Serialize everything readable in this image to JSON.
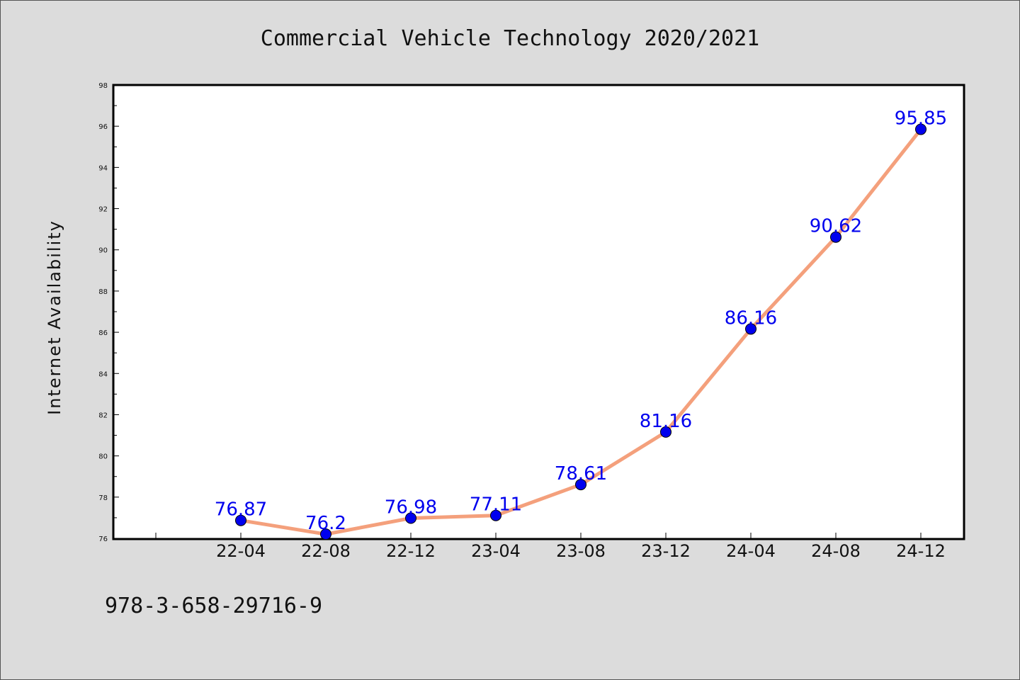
{
  "chart_data": {
    "type": "line",
    "title": "Commercial Vehicle Technology 2020/2021",
    "xlabel": "",
    "ylabel": "Internet Availability",
    "categories": [
      "22-04",
      "22-08",
      "22-12",
      "23-04",
      "23-08",
      "23-12",
      "24-04",
      "24-08",
      "24-12"
    ],
    "series": [
      {
        "values": [
          76.87,
          76.2,
          76.98,
          77.11,
          78.61,
          81.16,
          86.16,
          90.62,
          95.85
        ]
      }
    ],
    "data_labels": [
      "76.87",
      "76.2",
      "76.98",
      "77.11",
      "78.61",
      "81.16",
      "86.16",
      "90.62",
      "95.85"
    ],
    "ylim": [
      76,
      98
    ],
    "yticks": [
      "76",
      "78",
      "80",
      "82",
      "84",
      "86",
      "88",
      "90",
      "92",
      "94",
      "96",
      "98"
    ],
    "grid": false,
    "line_color": "#f4a07c",
    "marker_color": "#0000ee",
    "label_color": "#0000ee"
  },
  "footer": {
    "isbn": "978-3-658-29716-9"
  }
}
